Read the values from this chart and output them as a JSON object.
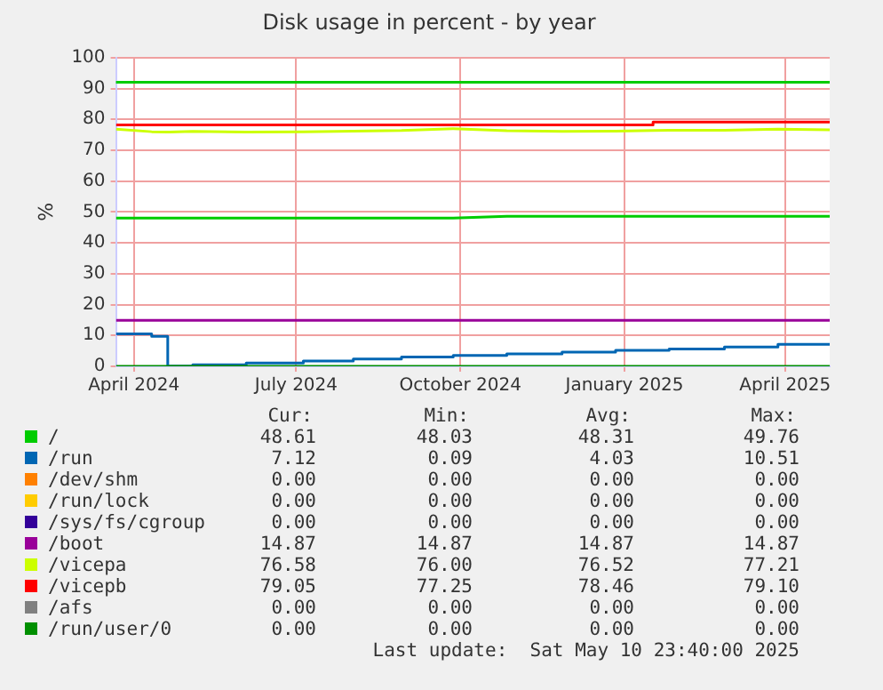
{
  "chart_data": {
    "type": "line",
    "title": "Disk usage in percent - by year",
    "ylabel": "%",
    "xlim": [
      "2024-03-22",
      "2025-04-26"
    ],
    "xticks": [
      {
        "value": "2024-04-01",
        "label": "April 2024"
      },
      {
        "value": "2024-07-01",
        "label": "July 2024"
      },
      {
        "value": "2024-10-01",
        "label": "October 2024"
      },
      {
        "value": "2025-01-01",
        "label": "January 2025"
      },
      {
        "value": "2025-04-01",
        "label": "April 2025"
      }
    ],
    "ylim": [
      0,
      100
    ],
    "yticks": [
      0,
      10,
      20,
      30,
      40,
      50,
      60,
      70,
      80,
      90,
      100
    ],
    "grid": true,
    "legend": "bottom",
    "marker": "none",
    "ref_lines": [
      {
        "axis": "y",
        "value": 92,
        "color": "#00cc00"
      }
    ],
    "x": [
      "2024-03-22",
      "2024-04-11",
      "2024-04-20",
      "2024-04-21",
      "2024-05-04",
      "2024-06-03",
      "2024-07-05",
      "2024-08-02",
      "2024-08-29",
      "2024-09-27",
      "2024-10-27",
      "2024-11-27",
      "2024-12-27",
      "2025-01-17",
      "2025-01-26",
      "2025-02-26",
      "2025-03-28",
      "2025-04-26"
    ],
    "series": [
      {
        "name": "/",
        "color": "#00cc00",
        "values": [
          48.0,
          48.0,
          48.0,
          48.0,
          48.0,
          48.0,
          48.0,
          48.0,
          48.0,
          48.0,
          48.6,
          48.6,
          48.6,
          48.6,
          48.6,
          48.6,
          48.6,
          48.6
        ]
      },
      {
        "name": "/run",
        "type": "step",
        "color": "#0066b3",
        "values": [
          10.5,
          9.7,
          0.1,
          0.1,
          0.5,
          1.1,
          1.7,
          2.4,
          3.0,
          3.5,
          4.0,
          4.6,
          5.2,
          5.2,
          5.6,
          6.3,
          7.1,
          7.1
        ]
      },
      {
        "name": "/dev/shm",
        "color": "#ff8000",
        "values": [
          null,
          null,
          null,
          null,
          null,
          null,
          null,
          null,
          null,
          null,
          null,
          null,
          null,
          null,
          null,
          null,
          null,
          null
        ]
      },
      {
        "name": "/run/lock",
        "color": "#ffcc00",
        "values": [
          null,
          null,
          null,
          null,
          null,
          null,
          null,
          null,
          null,
          null,
          null,
          null,
          null,
          null,
          null,
          null,
          null,
          null
        ]
      },
      {
        "name": "/sys/fs/cgroup",
        "color": "#330099",
        "values": [
          null,
          null,
          null,
          null,
          null,
          null,
          null,
          null,
          null,
          null,
          null,
          null,
          null,
          null,
          null,
          null,
          null,
          null
        ]
      },
      {
        "name": "/boot",
        "color": "#990099",
        "values": [
          14.9,
          14.9,
          14.9,
          14.9,
          14.9,
          14.9,
          14.9,
          14.9,
          14.9,
          14.9,
          14.9,
          14.9,
          14.9,
          14.9,
          14.9,
          14.9,
          14.9,
          14.9
        ]
      },
      {
        "name": "/vicepa",
        "color": "#ccff00",
        "values": [
          76.8,
          76.0,
          75.9,
          75.9,
          76.1,
          75.9,
          76.0,
          76.2,
          76.4,
          77.0,
          76.3,
          76.1,
          76.2,
          76.4,
          76.5,
          76.5,
          76.8,
          76.6
        ]
      },
      {
        "name": "/vicepb",
        "type": "step",
        "color": "#ff0000",
        "values": [
          78.2,
          78.2,
          78.2,
          78.2,
          78.2,
          78.2,
          78.2,
          78.2,
          78.2,
          78.2,
          78.2,
          78.2,
          78.2,
          79.1,
          79.1,
          79.1,
          79.1,
          79.1
        ]
      },
      {
        "name": "/afs",
        "color": "#808080",
        "values": [
          null,
          null,
          null,
          null,
          null,
          null,
          null,
          null,
          null,
          null,
          null,
          null,
          null,
          null,
          null,
          null,
          null,
          null
        ]
      },
      {
        "name": "/run/user/0",
        "color": "#008f00",
        "values": [
          0,
          0,
          0,
          0,
          0,
          0,
          0,
          0,
          0,
          0,
          0,
          0,
          0,
          0,
          0,
          0,
          0,
          0
        ]
      }
    ],
    "annotations": [
      "Cur:",
      "Min:",
      "Avg:",
      "Max:",
      "48.61",
      "48.03",
      "48.31",
      "49.76",
      "7.12",
      "0.09",
      "4.03",
      "10.51",
      "0.00",
      "0.00",
      "0.00",
      "0.00",
      "0.00",
      "0.00",
      "0.00",
      "0.00",
      "0.00",
      "0.00",
      "0.00",
      "0.00",
      "14.87",
      "14.87",
      "14.87",
      "14.87",
      "76.58",
      "76.00",
      "76.52",
      "77.21",
      "79.05",
      "77.25",
      "78.46",
      "79.10",
      "0.00",
      "0.00",
      "0.00",
      "0.00",
      "0.00",
      "0.00",
      "0.00",
      "0.00",
      "Last update:  Sat May 10 23:40:00 2025"
    ]
  }
}
